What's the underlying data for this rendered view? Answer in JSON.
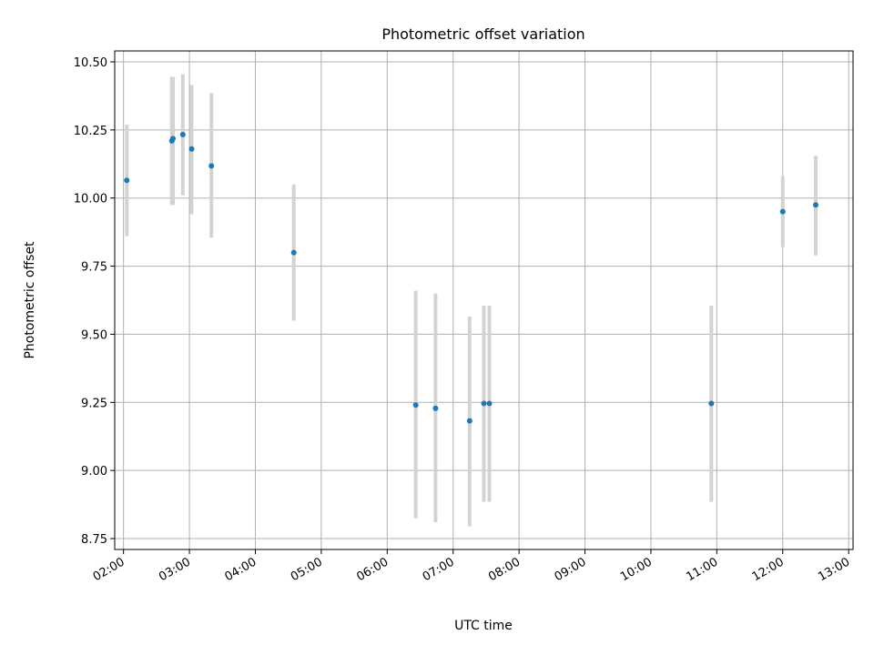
{
  "chart_data": {
    "type": "scatter",
    "title": "Photometric offset variation",
    "xlabel": "UTC time",
    "ylabel": "Photometric offset",
    "grid": true,
    "x_axis_kind": "time",
    "xlim": [
      "01:52",
      "13:04"
    ],
    "ylim": [
      8.71,
      10.54
    ],
    "x_ticks": [
      "02:00",
      "03:00",
      "04:00",
      "05:00",
      "06:00",
      "07:00",
      "08:00",
      "09:00",
      "10:00",
      "11:00",
      "12:00",
      "13:00"
    ],
    "y_ticks": [
      8.75,
      9.0,
      9.25,
      9.5,
      9.75,
      10.0,
      10.25,
      10.5
    ],
    "y_tick_labels": [
      "8.75",
      "9.00",
      "9.25",
      "9.50",
      "9.75",
      "10.00",
      "10.25",
      "10.50"
    ],
    "colors": {
      "points": "#1f77b4",
      "error_bars": "#d3d3d3",
      "grid": "#b0b0b0"
    },
    "series": [
      {
        "points": [
          {
            "x": "02:03",
            "y": 10.065,
            "err_low": 9.86,
            "err_high": 10.27
          },
          {
            "x": "02:44",
            "y": 10.21,
            "err_low": 9.975,
            "err_high": 10.445
          },
          {
            "x": "02:45",
            "y": 10.218,
            "err_low": 9.975,
            "err_high": 10.445
          },
          {
            "x": "02:54",
            "y": 10.233,
            "err_low": 10.01,
            "err_high": 10.455
          },
          {
            "x": "03:02",
            "y": 10.18,
            "err_low": 9.94,
            "err_high": 10.415
          },
          {
            "x": "03:20",
            "y": 10.118,
            "err_low": 9.855,
            "err_high": 10.385
          },
          {
            "x": "04:35",
            "y": 9.8,
            "err_low": 9.55,
            "err_high": 10.05
          },
          {
            "x": "06:26",
            "y": 9.24,
            "err_low": 8.825,
            "err_high": 9.66
          },
          {
            "x": "06:44",
            "y": 9.228,
            "err_low": 8.81,
            "err_high": 9.65
          },
          {
            "x": "07:15",
            "y": 9.182,
            "err_low": 8.795,
            "err_high": 9.565
          },
          {
            "x": "07:28",
            "y": 9.246,
            "err_low": 8.885,
            "err_high": 9.605
          },
          {
            "x": "07:33",
            "y": 9.246,
            "err_low": 8.885,
            "err_high": 9.605
          },
          {
            "x": "10:55",
            "y": 9.246,
            "err_low": 8.885,
            "err_high": 9.605
          },
          {
            "x": "12:00",
            "y": 9.95,
            "err_low": 9.82,
            "err_high": 10.08
          },
          {
            "x": "12:30",
            "y": 9.975,
            "err_low": 9.79,
            "err_high": 10.155
          }
        ]
      }
    ]
  }
}
